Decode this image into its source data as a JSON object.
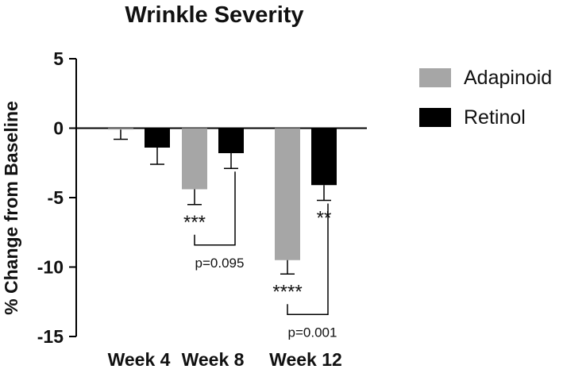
{
  "chart_data": {
    "type": "bar",
    "title": "Wrinkle Severity",
    "xlabel": "",
    "ylabel": "% Change from Baseline",
    "ylim": [
      -15,
      5
    ],
    "yticks": [
      5,
      0,
      -5,
      -10,
      -15
    ],
    "ytick_labels": [
      "5",
      "0",
      "-5",
      "-10",
      "-15"
    ],
    "categories": [
      "Week 4",
      "Week 8",
      "Week 12"
    ],
    "series": [
      {
        "name": "Adapinoid",
        "color": "#a6a6a6",
        "values": [
          -0.1,
          -4.4,
          -9.5
        ],
        "errors": [
          0.7,
          1.1,
          1.0
        ]
      },
      {
        "name": "Retinol",
        "color": "#000000",
        "values": [
          -1.4,
          -1.8,
          -4.1
        ],
        "errors": [
          1.2,
          1.1,
          1.1
        ]
      }
    ],
    "significance": [
      {
        "category": "Week 8",
        "series": "Adapinoid",
        "label": "***"
      },
      {
        "category": "Week 12",
        "series": "Adapinoid",
        "label": "****"
      },
      {
        "category": "Week 12",
        "series": "Retinol",
        "label": "**"
      }
    ],
    "comparisons": [
      {
        "category": "Week 8",
        "label": "p=0.095"
      },
      {
        "category": "Week 12",
        "label": "p=0.001"
      }
    ],
    "legend_position": "right"
  }
}
